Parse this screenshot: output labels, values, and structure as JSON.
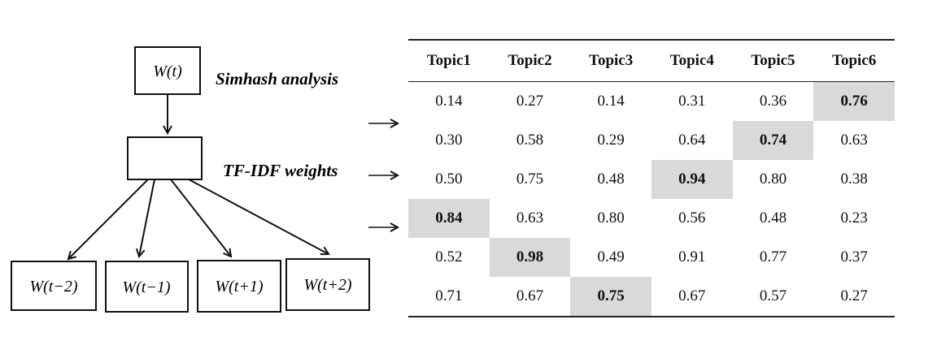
{
  "diagram": {
    "top_box": "W(t)",
    "middle_box": "",
    "bottom_boxes": [
      "W(t−2)",
      "W(t−1)",
      "W(t+1)",
      "W(t+2)"
    ],
    "annotation_top": "Simhash analysis",
    "annotation_middle": "TF-IDF weights"
  },
  "table": {
    "headers": [
      "Topic1",
      "Topic2",
      "Topic3",
      "Topic4",
      "Topic5",
      "Topic6"
    ],
    "rows": [
      [
        "0.14",
        "0.27",
        "0.14",
        "0.31",
        "0.36",
        "0.76"
      ],
      [
        "0.30",
        "0.58",
        "0.29",
        "0.64",
        "0.74",
        "0.63"
      ],
      [
        "0.50",
        "0.75",
        "0.48",
        "0.94",
        "0.80",
        "0.38"
      ],
      [
        "0.84",
        "0.63",
        "0.80",
        "0.56",
        "0.48",
        "0.23"
      ],
      [
        "0.52",
        "0.98",
        "0.49",
        "0.91",
        "0.77",
        "0.37"
      ],
      [
        "0.71",
        "0.67",
        "0.75",
        "0.67",
        "0.57",
        "0.27"
      ]
    ],
    "highlighted": [
      5,
      4,
      3,
      0,
      1,
      2
    ],
    "highlight_color": "#d9d9d9"
  }
}
